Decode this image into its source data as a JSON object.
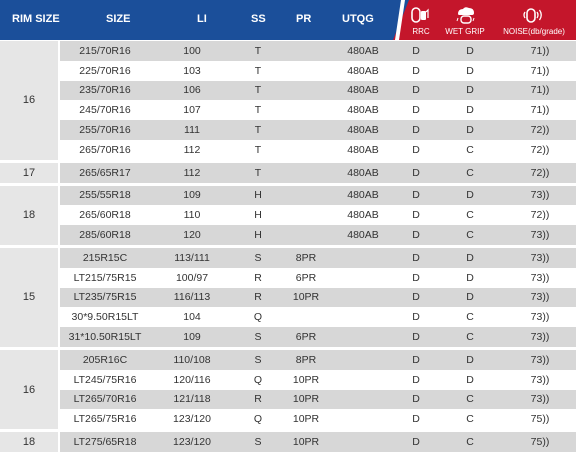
{
  "header": {
    "rim_size": "RIM SIZE",
    "size": "SIZE",
    "li": "LI",
    "ss": "SS",
    "pr": "PR",
    "utqg": "UTQG",
    "rrc": "RRC",
    "wet_grip": "WET GRIP",
    "noise": "NOISE(db/grade)",
    "icons": [
      "fuel-pump-tire-icon",
      "rain-tire-icon",
      "sound-waves-tire-icon"
    ],
    "colors": {
      "blue": "#1b4f9a",
      "red": "#c4162b"
    }
  },
  "groups": [
    {
      "rim": "16",
      "rows": [
        {
          "size": "215/70R16",
          "li": "100",
          "ss": "T",
          "pr": "",
          "utqg": "480AB",
          "rrc": "D",
          "wet": "D",
          "noise": "71))"
        },
        {
          "size": "225/70R16",
          "li": "103",
          "ss": "T",
          "pr": "",
          "utqg": "480AB",
          "rrc": "D",
          "wet": "D",
          "noise": "71))"
        },
        {
          "size": "235/70R16",
          "li": "106",
          "ss": "T",
          "pr": "",
          "utqg": "480AB",
          "rrc": "D",
          "wet": "D",
          "noise": "71))"
        },
        {
          "size": "245/70R16",
          "li": "107",
          "ss": "T",
          "pr": "",
          "utqg": "480AB",
          "rrc": "D",
          "wet": "D",
          "noise": "71))"
        },
        {
          "size": "255/70R16",
          "li": "111",
          "ss": "T",
          "pr": "",
          "utqg": "480AB",
          "rrc": "D",
          "wet": "D",
          "noise": "72))"
        },
        {
          "size": "265/70R16",
          "li": "112",
          "ss": "T",
          "pr": "",
          "utqg": "480AB",
          "rrc": "D",
          "wet": "C",
          "noise": "72))"
        }
      ]
    },
    {
      "rim": "17",
      "rows": [
        {
          "size": "265/65R17",
          "li": "112",
          "ss": "T",
          "pr": "",
          "utqg": "480AB",
          "rrc": "D",
          "wet": "C",
          "noise": "72))"
        }
      ]
    },
    {
      "rim": "18",
      "rows": [
        {
          "size": "255/55R18",
          "li": "109",
          "ss": "H",
          "pr": "",
          "utqg": "480AB",
          "rrc": "D",
          "wet": "D",
          "noise": "73))"
        },
        {
          "size": "265/60R18",
          "li": "110",
          "ss": "H",
          "pr": "",
          "utqg": "480AB",
          "rrc": "D",
          "wet": "C",
          "noise": "72))"
        },
        {
          "size": "285/60R18",
          "li": "120",
          "ss": "H",
          "pr": "",
          "utqg": "480AB",
          "rrc": "D",
          "wet": "C",
          "noise": "73))"
        }
      ]
    },
    {
      "rim": "15",
      "rows": [
        {
          "size": "215R15C",
          "li": "113/111",
          "ss": "S",
          "pr": "8PR",
          "utqg": "",
          "rrc": "D",
          "wet": "D",
          "noise": "73))"
        },
        {
          "size": "LT215/75R15",
          "li": "100/97",
          "ss": "R",
          "pr": "6PR",
          "utqg": "",
          "rrc": "D",
          "wet": "D",
          "noise": "73))"
        },
        {
          "size": "LT235/75R15",
          "li": "116/113",
          "ss": "R",
          "pr": "10PR",
          "utqg": "",
          "rrc": "D",
          "wet": "D",
          "noise": "73))"
        },
        {
          "size": "30*9.50R15LT",
          "li": "104",
          "ss": "Q",
          "pr": "",
          "utqg": "",
          "rrc": "D",
          "wet": "C",
          "noise": "73))"
        },
        {
          "size": "31*10.50R15LT",
          "li": "109",
          "ss": "S",
          "pr": "6PR",
          "utqg": "",
          "rrc": "D",
          "wet": "C",
          "noise": "73))"
        }
      ]
    },
    {
      "rim": "16",
      "rows": [
        {
          "size": "205R16C",
          "li": "110/108",
          "ss": "S",
          "pr": "8PR",
          "utqg": "",
          "rrc": "D",
          "wet": "D",
          "noise": "73))"
        },
        {
          "size": "LT245/75R16",
          "li": "120/116",
          "ss": "Q",
          "pr": "10PR",
          "utqg": "",
          "rrc": "D",
          "wet": "D",
          "noise": "73))"
        },
        {
          "size": "LT265/70R16",
          "li": "121/118",
          "ss": "R",
          "pr": "10PR",
          "utqg": "",
          "rrc": "D",
          "wet": "C",
          "noise": "73))"
        },
        {
          "size": "LT265/75R16",
          "li": "123/120",
          "ss": "Q",
          "pr": "10PR",
          "utqg": "",
          "rrc": "D",
          "wet": "C",
          "noise": "75))"
        }
      ]
    },
    {
      "rim": "18",
      "rows": [
        {
          "size": "LT275/65R18",
          "li": "123/120",
          "ss": "S",
          "pr": "10PR",
          "utqg": "",
          "rrc": "D",
          "wet": "C",
          "noise": "75))"
        }
      ]
    }
  ]
}
